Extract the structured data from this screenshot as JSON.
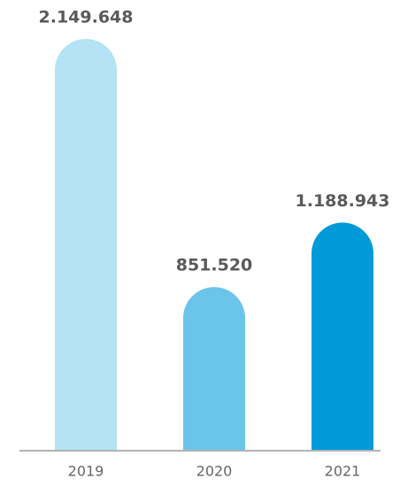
{
  "chart_data": {
    "type": "bar",
    "categories": [
      "2019",
      "2020",
      "2021"
    ],
    "values": [
      2149648,
      851520,
      1188943
    ],
    "value_labels": [
      "2.149.648",
      "851.520",
      "1.188.943"
    ],
    "colors": [
      "#b3e3f4",
      "#6bc4ea",
      "#009ad8"
    ]
  }
}
